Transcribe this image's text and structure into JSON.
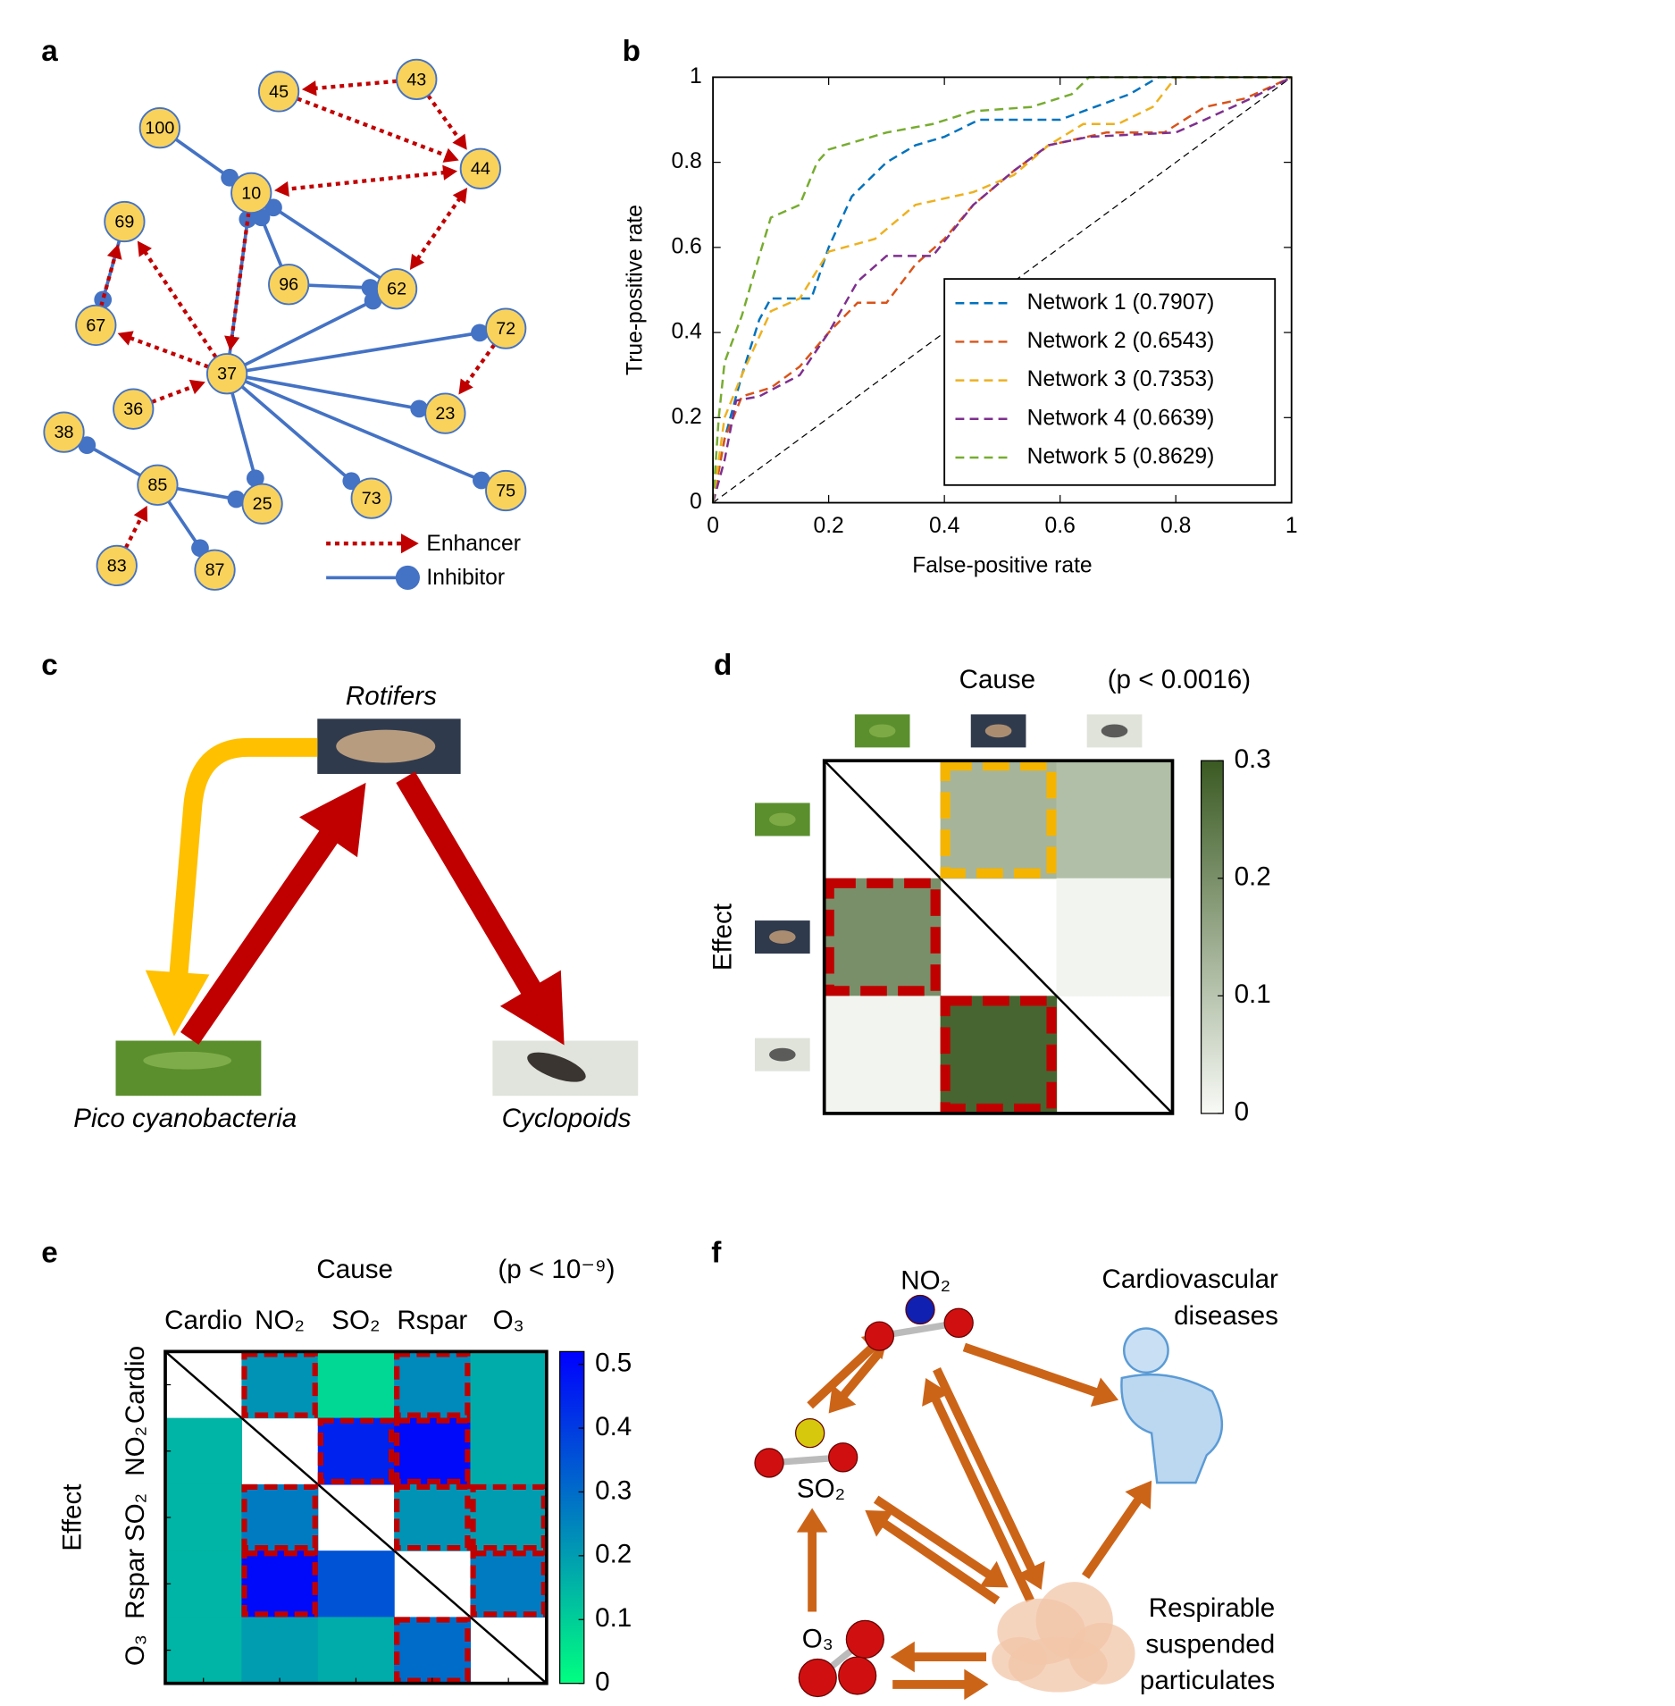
{
  "panel_labels": [
    "a",
    "b",
    "c",
    "d",
    "e",
    "f"
  ],
  "network": {
    "nodes": [
      "100",
      "45",
      "43",
      "44",
      "10",
      "69",
      "96",
      "62",
      "67",
      "37",
      "72",
      "36",
      "23",
      "38",
      "85",
      "25",
      "73",
      "75",
      "83",
      "87"
    ],
    "legend": [
      "Enhancer",
      "Inhibitor"
    ],
    "enhancer_color": "#c00000",
    "inhibitor_color": "#4472c4",
    "node_color": "#f9d25c"
  },
  "chart_data": [
    {
      "type": "line",
      "xlabel": "False-positive rate",
      "ylabel": "True-positive rate",
      "xlim": [
        0,
        1
      ],
      "ylim": [
        0,
        1
      ],
      "xticks": [
        0,
        0.2,
        0.4,
        0.6,
        0.8,
        1
      ],
      "yticks": [
        0,
        0.2,
        0.4,
        0.6,
        0.8,
        1
      ],
      "legend": "lower right",
      "series": [
        {
          "name": "Network 1 (0.7907)",
          "color": "#0072bd",
          "x": [
            0,
            0.02,
            0.05,
            0.08,
            0.1,
            0.17,
            0.2,
            0.24,
            0.3,
            0.35,
            0.4,
            0.46,
            0.6,
            0.66,
            0.72,
            0.77,
            1
          ],
          "values": [
            0,
            0.15,
            0.3,
            0.43,
            0.48,
            0.48,
            0.6,
            0.72,
            0.8,
            0.84,
            0.86,
            0.9,
            0.9,
            0.93,
            0.96,
            1,
            1
          ]
        },
        {
          "name": "Network 2 (0.6543)",
          "color": "#d95319",
          "x": [
            0,
            0.02,
            0.05,
            0.1,
            0.15,
            0.2,
            0.25,
            0.3,
            0.35,
            0.4,
            0.45,
            0.52,
            0.58,
            0.68,
            0.78,
            0.85,
            0.92,
            1
          ],
          "values": [
            0,
            0.15,
            0.25,
            0.27,
            0.32,
            0.4,
            0.47,
            0.47,
            0.56,
            0.62,
            0.7,
            0.78,
            0.84,
            0.87,
            0.87,
            0.93,
            0.95,
            1
          ]
        },
        {
          "name": "Network 3 (0.7353)",
          "color": "#edb120",
          "x": [
            0,
            0.02,
            0.05,
            0.1,
            0.15,
            0.2,
            0.28,
            0.35,
            0.45,
            0.52,
            0.58,
            0.64,
            0.7,
            0.76,
            0.8,
            1
          ],
          "values": [
            0,
            0.2,
            0.3,
            0.45,
            0.48,
            0.59,
            0.62,
            0.7,
            0.73,
            0.77,
            0.84,
            0.89,
            0.89,
            0.93,
            1,
            1
          ]
        },
        {
          "name": "Network 4 (0.6639)",
          "color": "#7e2f8e",
          "x": [
            0,
            0.02,
            0.04,
            0.08,
            0.15,
            0.2,
            0.25,
            0.3,
            0.38,
            0.45,
            0.52,
            0.58,
            0.65,
            0.8,
            0.85,
            0.93,
            1
          ],
          "values": [
            0,
            0.1,
            0.24,
            0.25,
            0.3,
            0.4,
            0.52,
            0.58,
            0.58,
            0.7,
            0.78,
            0.84,
            0.86,
            0.87,
            0.9,
            0.95,
            1
          ]
        },
        {
          "name": "Network 5 (0.8629)",
          "color": "#77ac30",
          "x": [
            0,
            0.01,
            0.02,
            0.05,
            0.08,
            0.1,
            0.15,
            0.18,
            0.2,
            0.25,
            0.3,
            0.38,
            0.45,
            0.55,
            0.62,
            0.65,
            1
          ],
          "values": [
            0,
            0.2,
            0.33,
            0.44,
            0.58,
            0.67,
            0.7,
            0.8,
            0.83,
            0.85,
            0.87,
            0.89,
            0.92,
            0.93,
            0.96,
            1,
            1
          ]
        }
      ]
    },
    {
      "type": "heatmap",
      "title": "Cause",
      "subtitle": "(p < 0.0016)",
      "ylabel": "Effect",
      "values": [
        [
          null,
          0.13,
          0.11
        ],
        [
          0.2,
          null,
          0.01
        ],
        [
          0.01,
          0.28,
          null
        ]
      ],
      "clim": [
        0,
        0.3
      ],
      "cticks": [
        0,
        0.1,
        0.2,
        0.3
      ],
      "colormap": [
        "#f8faf6",
        "#3a5a22"
      ],
      "outline_colors": [
        [
          null,
          "#f5b400",
          null
        ],
        [
          "#c00000",
          null,
          null
        ],
        [
          null,
          "#c00000",
          null
        ]
      ]
    },
    {
      "type": "heatmap",
      "title": "Cause",
      "subtitle": "(p < 10⁻⁹)",
      "ylabel": "Effect",
      "categories": [
        "Cardio",
        "NO₂",
        "SO₂",
        "Rspar",
        "O₃"
      ],
      "values": [
        [
          null,
          0.22,
          0.08,
          0.24,
          0.17
        ],
        [
          0.15,
          null,
          0.45,
          0.5,
          0.17
        ],
        [
          0.15,
          0.27,
          null,
          0.22,
          0.2
        ],
        [
          0.15,
          0.5,
          0.35,
          null,
          0.27
        ],
        [
          0.15,
          0.2,
          0.17,
          0.3,
          null
        ]
      ],
      "clim": [
        0,
        0.52
      ],
      "cticks": [
        0,
        0.1,
        0.2,
        0.3,
        0.4,
        0.5
      ],
      "colormap": [
        "#00ff80",
        "#0000ff"
      ],
      "outline_colors": [
        [
          null,
          "#c00000",
          null,
          "#c00000",
          null
        ],
        [
          null,
          null,
          "#c00000",
          "#c00000",
          null
        ],
        [
          null,
          "#c00000",
          null,
          "#c00000",
          "#c00000"
        ],
        [
          null,
          "#c00000",
          null,
          null,
          "#c00000"
        ],
        [
          null,
          null,
          null,
          "#c00000",
          null
        ]
      ]
    }
  ],
  "food_web": {
    "nodes": [
      "Rotifers",
      "Pico cyanobacteria",
      "Cyclopoids"
    ]
  },
  "pollution": {
    "nodes": [
      [
        "NO₂"
      ],
      [
        "SO₂"
      ],
      [
        "O₃"
      ],
      [
        "Cardiovascular",
        "diseases"
      ],
      [
        "Respirable",
        "suspended",
        "particulates"
      ]
    ]
  }
}
